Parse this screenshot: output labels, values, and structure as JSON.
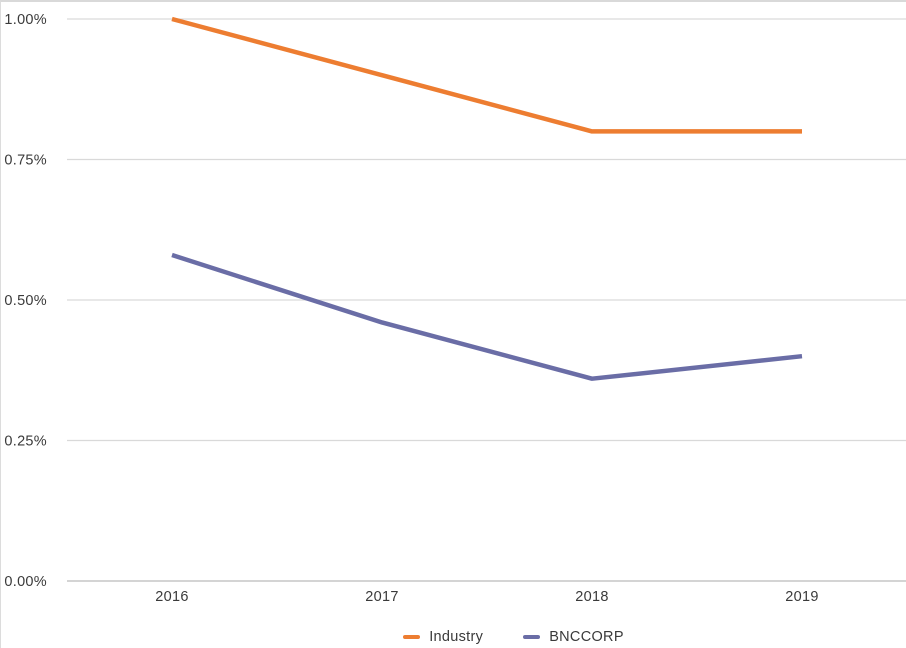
{
  "chart": {
    "background": "#ffffff",
    "border_color": "#d9d9d9",
    "grid_color": "#d9d9d9",
    "axis_color": "#c6c6c6",
    "text_color": "#3a3a3a"
  },
  "chart_data": {
    "type": "line",
    "title": "",
    "xlabel": "",
    "ylabel": "",
    "categories": [
      "2016",
      "2017",
      "2018",
      "2019"
    ],
    "series": [
      {
        "name": "Industry",
        "color": "#ED7D31",
        "values": [
          1.0,
          0.9,
          0.8,
          0.8
        ]
      },
      {
        "name": "BNCCORP",
        "color": "#6A6DA6",
        "values": [
          0.58,
          0.46,
          0.36,
          0.4
        ]
      }
    ],
    "ylim": [
      0,
      1.0
    ],
    "y_ticks": [
      {
        "value": 0.0,
        "label": "0.00%"
      },
      {
        "value": 0.25,
        "label": "0.25%"
      },
      {
        "value": 0.5,
        "label": "0.50%"
      },
      {
        "value": 0.75,
        "label": "0.75%"
      },
      {
        "value": 1.0,
        "label": "1.00%"
      }
    ],
    "grid": true,
    "legend_position": "bottom"
  }
}
